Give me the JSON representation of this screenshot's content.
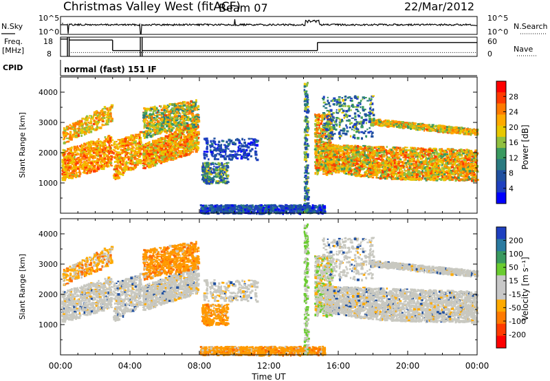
{
  "header": {
    "title": "Christmas Valley West (fitACF)",
    "beam": "Beam 07",
    "date": "22/Mar/2012"
  },
  "strip_noise": {
    "left_label": "N.Sky",
    "right_label": "N.Search",
    "left_ticks": [
      "10^5",
      "10^0"
    ],
    "right_ticks": [
      "10^5",
      "10^0"
    ]
  },
  "strip_freq": {
    "left_label_1": "Freq.",
    "left_label_2": "[MHz]",
    "right_label": "Nave",
    "left_ticks": [
      "18",
      "8"
    ],
    "right_ticks": [
      "60",
      "0"
    ]
  },
  "cpid": {
    "label": "CPID",
    "program": "normal (fast) 151 IF"
  },
  "colorbars": {
    "power": {
      "title": "Power [dB]",
      "ticks": [
        "28",
        "24",
        "20",
        "16",
        "12",
        "8",
        "4"
      ],
      "colors": [
        "#ff0000",
        "#ff3b00",
        "#ff7a00",
        "#ffaa00",
        "#e8c800",
        "#90c040",
        "#3a9a60",
        "#2a7a80",
        "#2050a0",
        "#1e40c0",
        "#0000ff"
      ]
    },
    "velocity": {
      "title": "Velocity [m s⁻¹]",
      "ticks": [
        "200",
        "100",
        "50",
        "15",
        "-15",
        "-50",
        "-100",
        "-200"
      ],
      "colors": [
        "#1e40c0",
        "#2a7aa0",
        "#3a9a60",
        "#6acc30",
        "#c8c8c8",
        "#c8c8c8",
        "#ffaa00",
        "#ff7a00",
        "#ff3b00",
        "#ff0000"
      ]
    }
  },
  "chart_data": [
    {
      "type": "heatmap",
      "panel": "power",
      "ylabel": "Slant Range [km]",
      "ylim": [
        0,
        4500
      ],
      "yticks": [
        1000,
        2000,
        3000,
        4000
      ],
      "xlim": [
        0,
        24
      ],
      "xticks": [
        "00:00",
        "04:00",
        "08:00",
        "12:00",
        "16:00",
        "20:00",
        "00:00"
      ],
      "xlabel": "Time UT",
      "colorbar": "power"
    },
    {
      "type": "heatmap",
      "panel": "velocity",
      "ylabel": "Slant Range [km]",
      "ylim": [
        0,
        4500
      ],
      "yticks": [
        1000,
        2000,
        3000,
        4000
      ],
      "xlim": [
        0,
        24
      ],
      "xticks": [
        "00:00",
        "04:00",
        "08:00",
        "12:00",
        "16:00",
        "20:00",
        "00:00"
      ],
      "xlabel": "Time UT",
      "colorbar": "velocity"
    }
  ]
}
